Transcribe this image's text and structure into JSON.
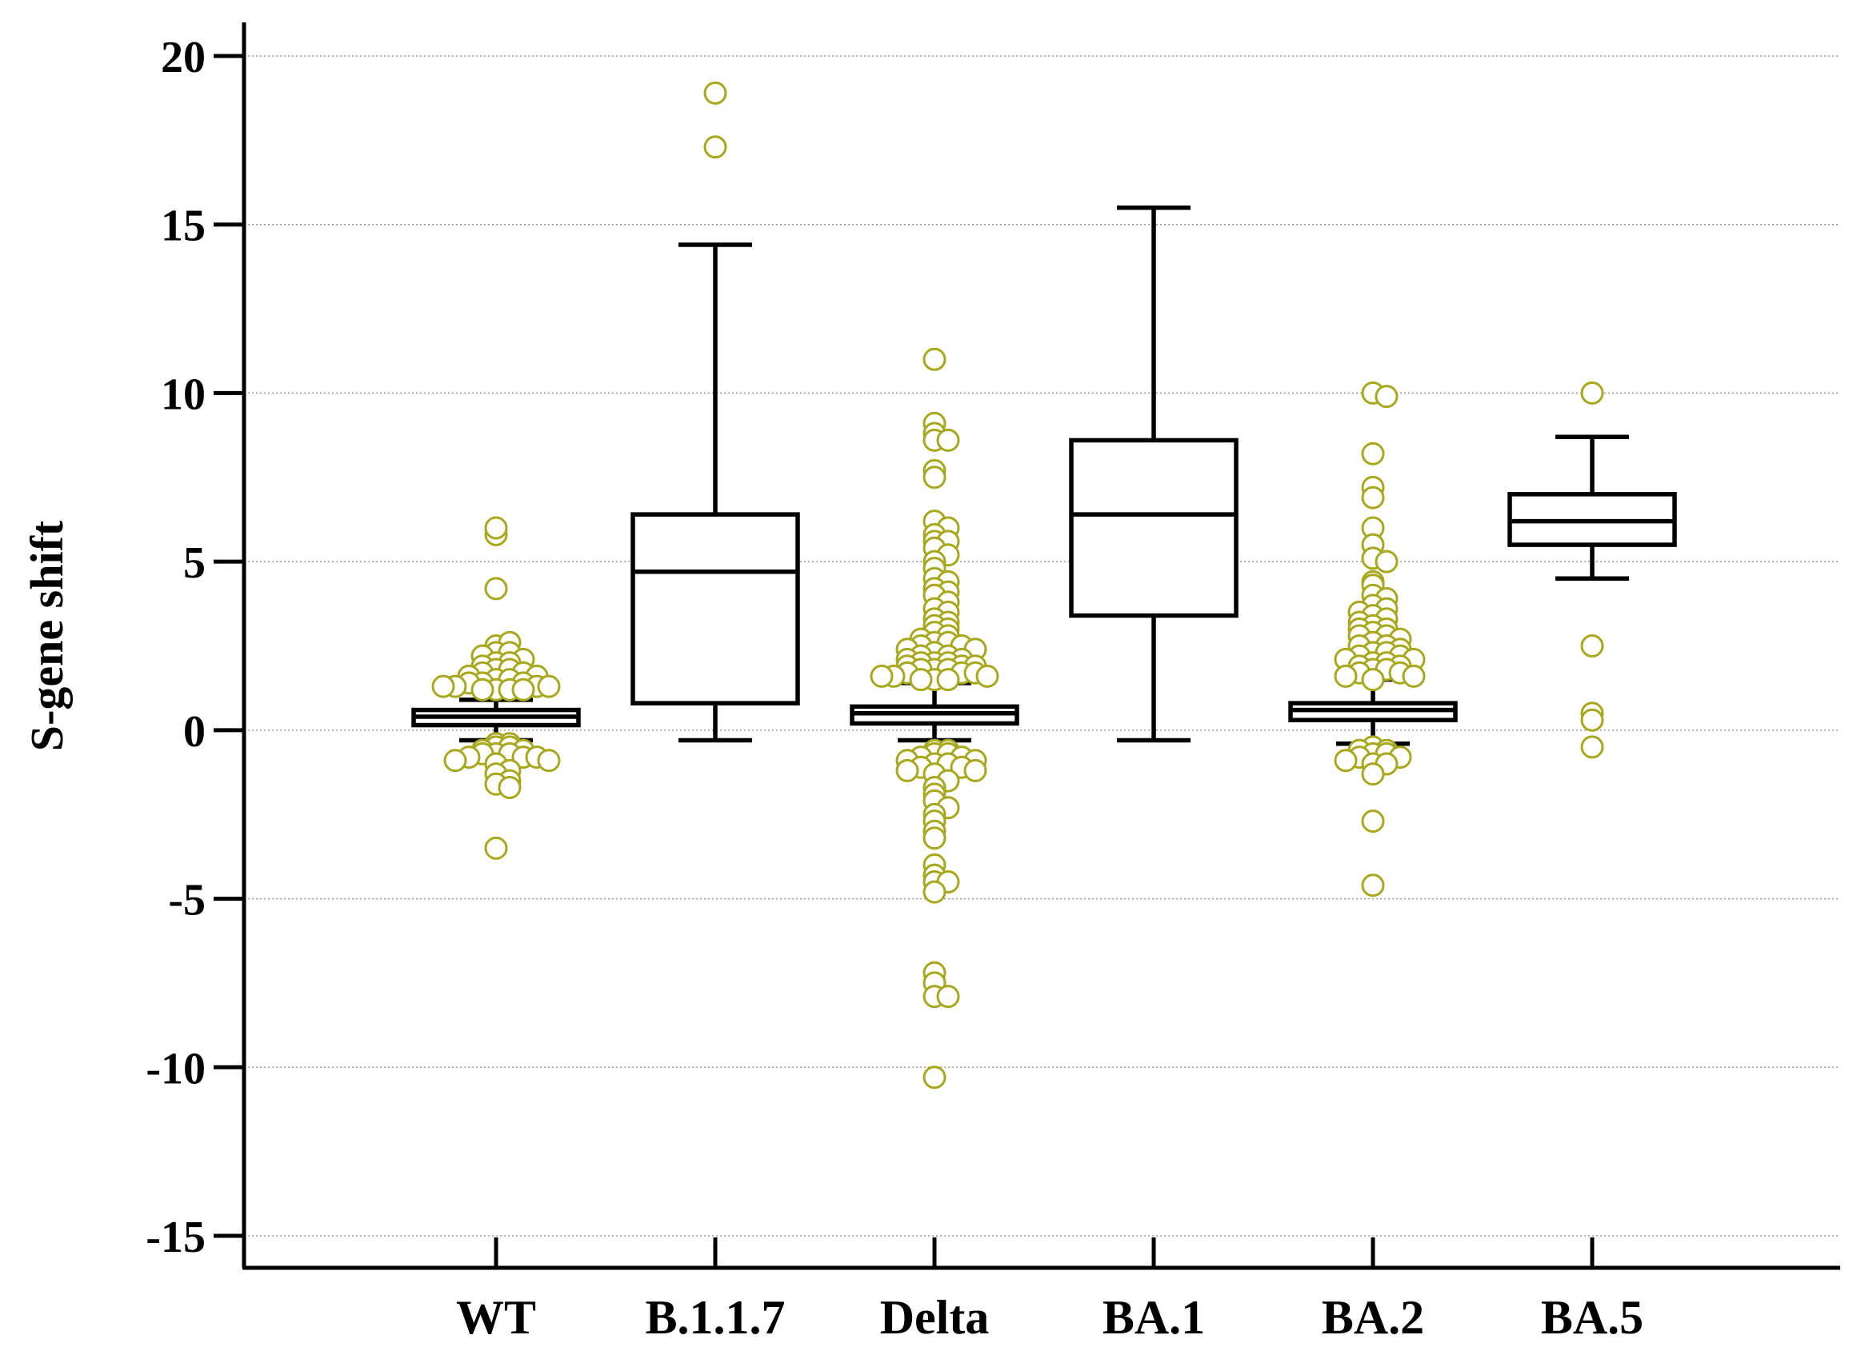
{
  "chart_data": {
    "type": "box",
    "title": "",
    "xlabel": "",
    "ylabel": "S-gene shift",
    "ylim": [
      -15,
      21
    ],
    "yticks": [
      20,
      15,
      10,
      5,
      0,
      -5,
      -10,
      -15
    ],
    "ytick_labels": [
      "20",
      "15",
      "10",
      "5",
      "0",
      "-5",
      "-10",
      "-15"
    ],
    "grid": true,
    "categories": [
      "WT",
      "B.1.1.7",
      "Delta",
      "BA.1",
      "BA.2",
      "BA.5"
    ],
    "colors": {
      "outlier_stroke": "#a8a81e",
      "box_stroke": "#000000",
      "grid": "#9a9a9a"
    },
    "series": [
      {
        "name": "WT",
        "whisker_low": -0.3,
        "q1": 0.15,
        "median": 0.4,
        "q3": 0.6,
        "whisker_high": 0.9,
        "outliers": [
          5.8,
          6.0,
          4.2,
          2.5,
          2.6,
          2.3,
          2.3,
          2.2,
          2.1,
          2.0,
          2.0,
          1.9,
          1.8,
          1.8,
          1.7,
          1.7,
          1.6,
          1.6,
          1.5,
          1.5,
          1.4,
          1.4,
          1.4,
          1.3,
          1.3,
          1.3,
          1.3,
          1.2,
          1.2,
          1.2,
          1.2,
          -0.4,
          -0.4,
          -0.5,
          -0.5,
          -0.6,
          -0.6,
          -0.7,
          -0.7,
          -0.7,
          -0.8,
          -0.8,
          -0.8,
          -0.9,
          -0.9,
          -1.0,
          -1.2,
          -1.3,
          -1.5,
          -1.6,
          -1.7,
          -3.5
        ]
      },
      {
        "name": "B.1.1.7",
        "whisker_low": -0.3,
        "q1": 0.8,
        "median": 4.7,
        "q3": 6.4,
        "whisker_high": 14.4,
        "outliers": [
          18.9,
          17.3
        ]
      },
      {
        "name": "Delta",
        "whisker_low": -0.3,
        "q1": 0.2,
        "median": 0.5,
        "q3": 0.7,
        "whisker_high": 1.4,
        "outliers": [
          11.0,
          9.1,
          8.8,
          8.6,
          8.6,
          7.7,
          7.5,
          6.2,
          6.0,
          5.8,
          5.6,
          5.6,
          5.4,
          5.2,
          5.0,
          4.8,
          4.5,
          4.4,
          4.2,
          4.1,
          4.0,
          3.8,
          3.6,
          3.5,
          3.3,
          3.2,
          3.1,
          3.0,
          2.9,
          2.8,
          2.7,
          2.6,
          2.6,
          2.5,
          2.5,
          2.4,
          2.4,
          2.3,
          2.2,
          2.2,
          2.1,
          2.1,
          2.0,
          2.0,
          2.0,
          1.9,
          1.9,
          1.9,
          1.8,
          1.8,
          1.8,
          1.7,
          1.7,
          1.7,
          1.6,
          1.6,
          1.6,
          1.5,
          1.5,
          1.5,
          -0.6,
          -0.6,
          -0.7,
          -0.7,
          -0.8,
          -0.8,
          -0.9,
          -0.9,
          -1.0,
          -1.0,
          -1.1,
          -1.1,
          -1.2,
          -1.2,
          -1.3,
          -1.5,
          -1.7,
          -1.9,
          -2.1,
          -2.3,
          -2.5,
          -2.7,
          -3.0,
          -3.2,
          -4.0,
          -4.3,
          -4.5,
          -4.5,
          -4.8,
          -7.2,
          -7.5,
          -7.9,
          -7.9,
          -10.3
        ]
      },
      {
        "name": "BA.1",
        "whisker_low": -0.3,
        "q1": 3.4,
        "median": 6.4,
        "q3": 8.6,
        "whisker_high": 15.5,
        "outliers": []
      },
      {
        "name": "BA.2",
        "whisker_low": -0.4,
        "q1": 0.3,
        "median": 0.6,
        "q3": 0.8,
        "whisker_high": 1.5,
        "outliers": [
          10.0,
          9.9,
          8.2,
          7.2,
          6.9,
          6.0,
          5.5,
          5.1,
          5.0,
          4.4,
          4.3,
          4.0,
          3.9,
          3.7,
          3.6,
          3.5,
          3.4,
          3.3,
          3.2,
          3.1,
          3.0,
          3.0,
          2.9,
          2.8,
          2.8,
          2.7,
          2.6,
          2.5,
          2.5,
          2.4,
          2.3,
          2.3,
          2.2,
          2.2,
          2.1,
          2.1,
          2.0,
          2.0,
          1.9,
          1.9,
          1.8,
          1.8,
          1.7,
          1.7,
          1.6,
          1.6,
          1.5,
          -0.5,
          -0.6,
          -0.6,
          -0.7,
          -0.7,
          -0.8,
          -0.8,
          -0.9,
          -1.0,
          -1.0,
          -1.3,
          -2.7,
          -4.6
        ]
      },
      {
        "name": "BA.5",
        "whisker_low": 4.5,
        "q1": 5.5,
        "median": 6.2,
        "q3": 7.0,
        "whisker_high": 8.7,
        "outliers": [
          10.0,
          2.5,
          0.5,
          0.3,
          -0.5
        ]
      }
    ]
  }
}
